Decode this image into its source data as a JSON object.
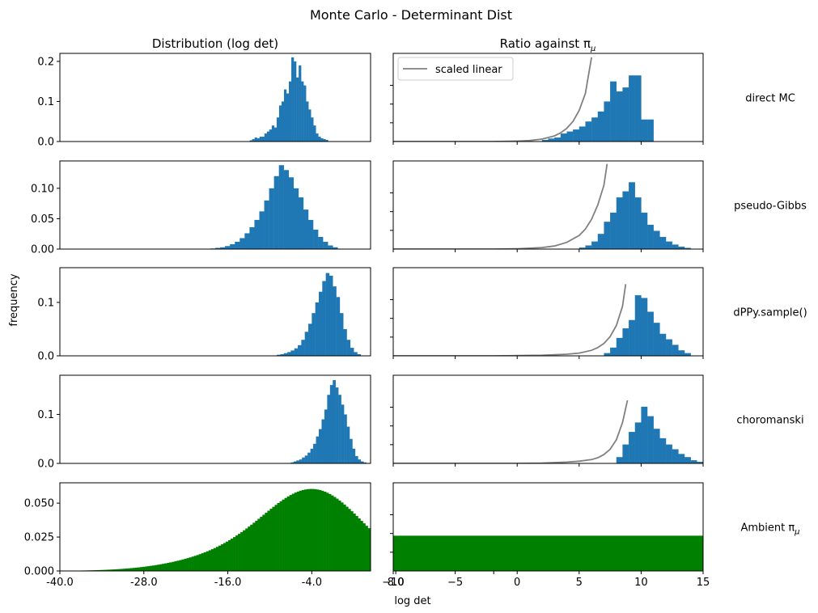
{
  "figure": {
    "title": "Monte Carlo - Determinant Dist",
    "col_titles": [
      "Distribution (log det)",
      "Ratio against π"
    ],
    "col_title_subscript": "μ",
    "ylabel": "frequency",
    "xlabel_right": "log det",
    "colors": {
      "hist": "#1f77b4",
      "ambient": "#008000",
      "curve": "#808080"
    },
    "legend": {
      "label": "scaled linear",
      "placement": "upper-left of first right panel"
    }
  },
  "chart_data": [
    {
      "type": "bar",
      "row": 0,
      "column": "left",
      "row_label": "direct MC",
      "color": "#1f77b4",
      "xlim": [
        -40,
        4.4
      ],
      "ylim": [
        0,
        0.22
      ],
      "yticks": [
        0.0,
        0.1,
        0.2
      ],
      "ytick_labels": [
        "0.0",
        "0.1",
        "0.2"
      ],
      "bin_width": 0.35,
      "x": [
        -12.7,
        -12.35,
        -12.0,
        -11.65,
        -11.3,
        -10.95,
        -10.6,
        -10.25,
        -9.9,
        -9.55,
        -9.2,
        -8.85,
        -8.5,
        -8.15,
        -7.8,
        -7.45,
        -7.1,
        -6.75,
        -6.4,
        -6.05,
        -5.7,
        -5.35,
        -5.0,
        -4.65,
        -4.3,
        -3.95,
        -3.6,
        -3.25,
        -2.9,
        -2.55,
        -2.2,
        -1.85
      ],
      "values": [
        0.003,
        0.006,
        0.01,
        0.008,
        0.012,
        0.012,
        0.02,
        0.025,
        0.03,
        0.04,
        0.035,
        0.06,
        0.09,
        0.1,
        0.13,
        0.12,
        0.15,
        0.21,
        0.2,
        0.16,
        0.19,
        0.15,
        0.14,
        0.1,
        0.08,
        0.06,
        0.04,
        0.02,
        0.012,
        0.008,
        0.006,
        0.004
      ]
    },
    {
      "type": "bar",
      "row": 0,
      "column": "right",
      "color": "#1f77b4",
      "xlim": [
        -10,
        15
      ],
      "ylim": [
        0,
        0.44
      ],
      "x": [
        2.25,
        2.75,
        3.25,
        3.75,
        4.25,
        4.75,
        5.25,
        5.75,
        6.25,
        6.75,
        7.25,
        7.75,
        8.25,
        8.75,
        9.25,
        9.75,
        10.25,
        10.75
      ],
      "values": [
        0.008,
        0.015,
        0.02,
        0.04,
        0.05,
        0.06,
        0.075,
        0.1,
        0.12,
        0.15,
        0.2,
        0.3,
        0.25,
        0.27,
        0.33,
        0.33,
        0.11,
        0.11
      ],
      "curve": {
        "label": "scaled linear",
        "x": [
          -10,
          -8,
          -6,
          -4,
          -2,
          0,
          1,
          2,
          3,
          3.5,
          4,
          4.5,
          5,
          5.5,
          6
        ],
        "y": [
          0.0,
          0.0,
          0.0,
          0.0,
          0.0,
          0.002,
          0.005,
          0.012,
          0.028,
          0.043,
          0.066,
          0.1,
          0.155,
          0.24,
          0.42
        ]
      }
    },
    {
      "type": "bar",
      "row": 1,
      "column": "left",
      "row_label": "pseudo-Gibbs",
      "color": "#1f77b4",
      "xlim": [
        -40,
        4.4
      ],
      "ylim": [
        0,
        0.145
      ],
      "yticks": [
        0.0,
        0.05,
        0.1
      ],
      "ytick_labels": [
        "0.00",
        "0.05",
        "0.10"
      ],
      "bin_width": 0.7,
      "x": [
        -18.15,
        -17.45,
        -16.75,
        -16.05,
        -15.35,
        -14.65,
        -13.95,
        -13.25,
        -12.55,
        -11.85,
        -11.15,
        -10.45,
        -9.75,
        -9.05,
        -8.35,
        -7.65,
        -6.95,
        -6.25,
        -5.55,
        -4.85,
        -4.15,
        -3.45,
        -2.75,
        -2.05,
        -1.35,
        -0.65
      ],
      "values": [
        0.001,
        0.002,
        0.003,
        0.005,
        0.008,
        0.012,
        0.018,
        0.026,
        0.036,
        0.048,
        0.062,
        0.08,
        0.1,
        0.12,
        0.138,
        0.13,
        0.118,
        0.1,
        0.085,
        0.065,
        0.048,
        0.032,
        0.02,
        0.012,
        0.006,
        0.003
      ]
    },
    {
      "type": "bar",
      "row": 1,
      "column": "right",
      "color": "#1f77b4",
      "xlim": [
        -10,
        15
      ],
      "ylim": [
        0,
        0.29
      ],
      "x": [
        5.25,
        5.75,
        6.25,
        6.75,
        7.25,
        7.75,
        8.25,
        8.75,
        9.25,
        9.75,
        10.25,
        10.75,
        11.25,
        11.75,
        12.25,
        12.75,
        13.25,
        13.75
      ],
      "values": [
        0.005,
        0.012,
        0.025,
        0.05,
        0.09,
        0.12,
        0.17,
        0.19,
        0.22,
        0.17,
        0.12,
        0.08,
        0.06,
        0.04,
        0.025,
        0.015,
        0.008,
        0.004
      ],
      "curve": {
        "x": [
          -10,
          -6,
          -2,
          0,
          2,
          3,
          4,
          5,
          5.5,
          6,
          6.5,
          7,
          7.25
        ],
        "y": [
          0.0,
          0.0,
          0.0,
          0.001,
          0.005,
          0.01,
          0.022,
          0.045,
          0.066,
          0.098,
          0.145,
          0.21,
          0.28
        ]
      }
    },
    {
      "type": "bar",
      "row": 2,
      "column": "left",
      "row_label": "dPPy.sample()",
      "color": "#1f77b4",
      "xlim": [
        -40,
        4.4
      ],
      "ylim": [
        0,
        0.165
      ],
      "yticks": [
        0.0,
        0.1
      ],
      "ytick_labels": [
        "0.0",
        "0.1"
      ],
      "bin_width": 0.5,
      "x": [
        -8.75,
        -8.25,
        -7.75,
        -7.25,
        -6.75,
        -6.25,
        -5.75,
        -5.25,
        -4.75,
        -4.25,
        -3.75,
        -3.25,
        -2.75,
        -2.25,
        -1.75,
        -1.25,
        -0.75,
        -0.25,
        0.25,
        0.75,
        1.25,
        1.75,
        2.25,
        2.75
      ],
      "values": [
        0.002,
        0.003,
        0.005,
        0.007,
        0.01,
        0.014,
        0.02,
        0.03,
        0.045,
        0.06,
        0.08,
        0.1,
        0.12,
        0.14,
        0.155,
        0.15,
        0.13,
        0.11,
        0.08,
        0.05,
        0.03,
        0.015,
        0.007,
        0.003
      ]
    },
    {
      "type": "bar",
      "row": 2,
      "column": "right",
      "color": "#1f77b4",
      "xlim": [
        -10,
        15
      ],
      "ylim": [
        0,
        0.32
      ],
      "x": [
        7.25,
        7.75,
        8.25,
        8.75,
        9.25,
        9.75,
        10.25,
        10.75,
        11.25,
        11.75,
        12.25,
        12.75,
        13.25,
        13.75
      ],
      "values": [
        0.01,
        0.03,
        0.065,
        0.1,
        0.13,
        0.22,
        0.21,
        0.16,
        0.12,
        0.08,
        0.06,
        0.04,
        0.02,
        0.01
      ],
      "curve": {
        "x": [
          -10,
          -6,
          -2,
          0,
          2,
          4,
          5,
          6,
          6.5,
          7,
          7.5,
          8,
          8.5,
          8.75
        ],
        "y": [
          0.0,
          0.0,
          0.0,
          0.001,
          0.002,
          0.006,
          0.01,
          0.02,
          0.03,
          0.045,
          0.07,
          0.11,
          0.18,
          0.26
        ]
      }
    },
    {
      "type": "bar",
      "row": 3,
      "column": "left",
      "row_label": "choromanski",
      "color": "#1f77b4",
      "xlim": [
        -40,
        4.4
      ],
      "ylim": [
        0,
        0.18
      ],
      "yticks": [
        0.0,
        0.1
      ],
      "ytick_labels": [
        "0.0",
        "0.1"
      ],
      "bin_width": 0.4,
      "x": [
        -6.8,
        -6.4,
        -6.0,
        -5.6,
        -5.2,
        -4.8,
        -4.4,
        -4.0,
        -3.6,
        -3.2,
        -2.8,
        -2.4,
        -2.0,
        -1.6,
        -1.2,
        -0.8,
        -0.4,
        0.0,
        0.4,
        0.8,
        1.2,
        1.6,
        2.0,
        2.4,
        2.8,
        3.2,
        3.6
      ],
      "values": [
        0.002,
        0.004,
        0.006,
        0.008,
        0.012,
        0.016,
        0.022,
        0.03,
        0.04,
        0.055,
        0.07,
        0.09,
        0.11,
        0.14,
        0.16,
        0.17,
        0.155,
        0.14,
        0.12,
        0.1,
        0.075,
        0.05,
        0.03,
        0.015,
        0.008,
        0.004,
        0.002
      ]
    },
    {
      "type": "bar",
      "row": 3,
      "column": "right",
      "color": "#1f77b4",
      "xlim": [
        -10,
        15
      ],
      "ylim": [
        0,
        0.28
      ],
      "x": [
        8.25,
        8.75,
        9.25,
        9.75,
        10.25,
        10.75,
        11.25,
        11.75,
        12.25,
        12.75,
        13.25,
        13.75,
        14.25,
        14.75
      ],
      "values": [
        0.02,
        0.06,
        0.1,
        0.13,
        0.18,
        0.15,
        0.11,
        0.08,
        0.06,
        0.045,
        0.03,
        0.02,
        0.01,
        0.005
      ],
      "curve": {
        "x": [
          -10,
          -6,
          -2,
          0,
          2,
          4,
          5,
          6,
          6.5,
          7,
          7.5,
          8,
          8.5,
          8.9
        ],
        "y": [
          0.0,
          0.0,
          0.0,
          0.0,
          0.001,
          0.004,
          0.007,
          0.012,
          0.018,
          0.028,
          0.045,
          0.075,
          0.13,
          0.2
        ]
      }
    },
    {
      "type": "bar",
      "row": 4,
      "column": "left",
      "row_label": "Ambient π",
      "row_label_subscript": "μ",
      "color": "#008000",
      "xlim": [
        -40,
        4.4
      ],
      "ylim": [
        0,
        0.065
      ],
      "xticks": [
        -40,
        -28,
        -16,
        -4,
        8
      ],
      "xtick_labels": [
        "-40.0",
        "-28.0",
        "-16.0",
        "-4.0",
        "8.0"
      ],
      "yticks": [
        0.0,
        0.025,
        0.05
      ],
      "ytick_labels": [
        "0.000",
        "0.025",
        "0.050"
      ],
      "curve_gaussian": {
        "mean": -3.3,
        "sd": 6.8,
        "peak": 0.06,
        "left_tail_weight": 0.3,
        "left_tail_mean": -12,
        "left_tail_sd": 9
      },
      "range": [
        -38,
        5
      ],
      "bin_width": 0.35
    },
    {
      "type": "bar",
      "row": 4,
      "column": "right",
      "color": "#008000",
      "xlim": [
        -10,
        15
      ],
      "ylim": [
        0,
        0.065
      ],
      "xticks": [
        -10,
        -5,
        0,
        5,
        10,
        15
      ],
      "xtick_labels": [
        "−10",
        "−5",
        "0",
        "5",
        "10",
        "15"
      ],
      "xlabel": "log det",
      "x": [
        -10,
        15
      ],
      "values": [
        0.026,
        0.026
      ]
    }
  ]
}
